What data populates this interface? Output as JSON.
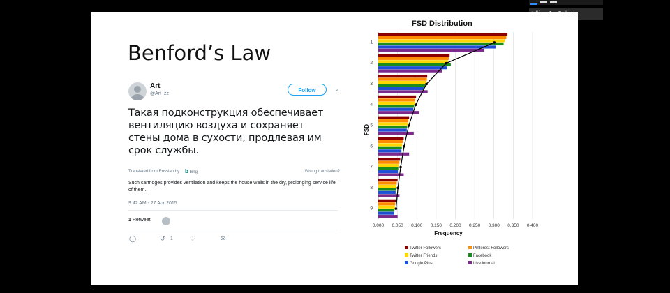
{
  "slide": {
    "title": "Benford’s Law"
  },
  "tweet": {
    "author_name": "Art",
    "author_handle": "@Art_zz",
    "follow_label": "Follow",
    "text": "Такая подконструкция обеспечивает вентиляцию воздуха и сохраняет стены дома в сухости, продлевая им срок службы.",
    "translated_from": "Translated from Russian by",
    "translator": "bing",
    "wrong_translation": "Wrong translation?",
    "translation": "Such cartridges provides ventilation and keeps the house walls in the dry, prolonging service life of them.",
    "timestamp": "9:42 AM - 27 Apr 2015",
    "retweet_count": "1",
    "retweet_label": "Retweet",
    "action_retweet_count": "1"
  },
  "meeting": {
    "talking_label": "talking: Jen Golbeck"
  },
  "chart_data": {
    "type": "bar",
    "orientation": "horizontal",
    "title": "FSD Distribution",
    "xlabel": "Frequency",
    "ylabel": "FSD",
    "categories": [
      "1",
      "2",
      "3",
      "4",
      "5",
      "6",
      "7",
      "8",
      "9"
    ],
    "xlim": [
      0,
      0.4
    ],
    "x_ticks": [
      "0.000",
      "0.050",
      "0.100",
      "0.150",
      "0.200",
      "0.250",
      "0.300",
      "0.350",
      "0.400"
    ],
    "legend_position": "bottom",
    "series": [
      {
        "name": "Twitter Followers",
        "color": "#8b0000",
        "values": [
          0.335,
          0.185,
          0.127,
          0.098,
          0.08,
          0.066,
          0.057,
          0.05,
          0.046
        ]
      },
      {
        "name": "Pinterest Followers",
        "color": "#ff8c00",
        "values": [
          0.332,
          0.183,
          0.126,
          0.096,
          0.078,
          0.064,
          0.055,
          0.048,
          0.044
        ]
      },
      {
        "name": "Twitter Friends",
        "color": "#ffd700",
        "values": [
          0.328,
          0.181,
          0.125,
          0.095,
          0.077,
          0.062,
          0.053,
          0.047,
          0.043
        ]
      },
      {
        "name": "Facebook",
        "color": "#1a8c1a",
        "values": [
          0.325,
          0.188,
          0.122,
          0.093,
          0.075,
          0.061,
          0.052,
          0.046,
          0.042
        ]
      },
      {
        "name": "Google Plus",
        "color": "#1e50d6",
        "values": [
          0.305,
          0.178,
          0.118,
          0.091,
          0.074,
          0.06,
          0.051,
          0.045,
          0.041
        ]
      },
      {
        "name": "LiveJournal",
        "color": "#7b2a8c",
        "values": [
          0.275,
          0.165,
          0.128,
          0.106,
          0.092,
          0.08,
          0.066,
          0.055,
          0.05
        ]
      }
    ],
    "benford_line": [
      0.301,
      0.176,
      0.125,
      0.097,
      0.079,
      0.067,
      0.058,
      0.051,
      0.046
    ]
  }
}
